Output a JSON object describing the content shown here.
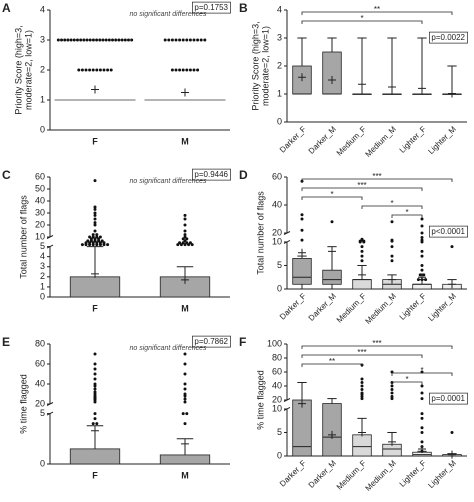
{
  "chart_data": [
    {
      "panel": "A",
      "type": "dot",
      "ylabel": [
        "Priority Score (high=3,",
        "moderate=2, low=1)"
      ],
      "note": "no significant differences",
      "p_value": "p=0.1753",
      "categories": [
        "F",
        "M"
      ],
      "ylim": [
        0,
        4
      ],
      "yticks": [
        0,
        1,
        2,
        3,
        4
      ],
      "median": [
        1,
        1
      ],
      "mean": [
        1.35,
        1.25
      ],
      "dots": [
        [
          3,
          3,
          3,
          3,
          3,
          3,
          3,
          3,
          3,
          3,
          3,
          3,
          3,
          3,
          3,
          3,
          3,
          3,
          3,
          3,
          3,
          3,
          3,
          3,
          2,
          2,
          2,
          2,
          2,
          2,
          2,
          2,
          2,
          2
        ],
        [
          3,
          3,
          3,
          3,
          3,
          3,
          3,
          3,
          3,
          3,
          3,
          3,
          2,
          2,
          2,
          2,
          2,
          2,
          2,
          2
        ]
      ]
    },
    {
      "panel": "B",
      "type": "box",
      "ylabel": [
        "Priority Score (high=3,",
        "moderate=2, low=1)"
      ],
      "p_value": "p=0.0022",
      "categories": [
        "Darker_F",
        "Darker_M",
        "Medium_F",
        "Medium_M",
        "Lighter_F",
        "Lighter_M"
      ],
      "colors": [
        "#a6a6a6",
        "#a6a6a6",
        "#d9d9d9",
        "#d9d9d9",
        "#efefef",
        "#efefef"
      ],
      "ylim": [
        0,
        4
      ],
      "yticks": [
        0,
        1,
        2,
        3,
        4
      ],
      "low": [
        1,
        1,
        1,
        1,
        1,
        1
      ],
      "q1": [
        1,
        1,
        1,
        1,
        1,
        1
      ],
      "median": [
        1,
        1,
        1,
        1,
        1,
        1
      ],
      "q3": [
        2,
        2.5,
        1,
        1,
        1,
        1
      ],
      "high": [
        3,
        3,
        3,
        3,
        3,
        2
      ],
      "mean": [
        1.6,
        1.5,
        1.35,
        1.25,
        1.2,
        1.02
      ],
      "brackets": [
        {
          "from": 0,
          "to": 5,
          "label": "**"
        },
        {
          "from": 0,
          "to": 4,
          "label": "*"
        }
      ]
    },
    {
      "panel": "C",
      "type": "bar",
      "ylabel": [
        "Total number of flags"
      ],
      "note": "no significant differences",
      "p_value": "p=0.9446",
      "categories": [
        "F",
        "M"
      ],
      "colors": [
        "#a6a6a6",
        "#a6a6a6"
      ],
      "ylim": [
        0,
        60
      ],
      "yticks": [
        0,
        1,
        2,
        3,
        4,
        5,
        10,
        20,
        30,
        40,
        50,
        60
      ],
      "values": [
        2,
        2
      ],
      "high": [
        5,
        3
      ],
      "mean": [
        2.3,
        1.7
      ],
      "dots": [
        [
          6,
          6,
          6,
          6,
          6,
          6,
          6,
          6,
          7,
          7,
          7,
          7,
          7,
          7,
          8,
          8,
          8,
          8,
          8,
          9,
          9,
          9,
          10,
          10,
          10,
          10,
          12,
          12,
          15,
          20,
          22,
          25,
          28,
          30,
          33,
          35,
          57
        ],
        [
          6,
          6,
          6,
          6,
          6,
          7,
          7,
          7,
          7,
          8,
          9,
          9,
          10,
          12,
          15,
          20,
          25,
          28
        ]
      ]
    },
    {
      "panel": "D",
      "type": "box",
      "ylabel": [
        "Total number of flags"
      ],
      "p_value": "p<0.0001",
      "categories": [
        "Darker_F",
        "Darker_M",
        "Medium_F",
        "Medium_M",
        "Lighter_F",
        "Lighter_M"
      ],
      "colors": [
        "#a6a6a6",
        "#a6a6a6",
        "#d9d9d9",
        "#d9d9d9",
        "#efefef",
        "#efefef"
      ],
      "ylim": [
        0,
        60
      ],
      "yticks": [
        0,
        5,
        10,
        20,
        40,
        60
      ],
      "low": [
        0,
        0,
        0,
        0,
        0,
        0
      ],
      "q1": [
        1,
        1,
        0,
        0,
        0,
        0
      ],
      "median": [
        2.5,
        2,
        2,
        1,
        1,
        0
      ],
      "q3": [
        6.5,
        4,
        2,
        2,
        1,
        1
      ],
      "high": [
        7,
        9,
        5,
        3,
        2,
        2
      ],
      "mean": [
        7.7,
        8,
        3,
        2,
        2.5,
        1
      ],
      "dots": [
        [
          12,
          22,
          30,
          33,
          57
        ],
        [
          28
        ],
        [
          6,
          7,
          8,
          9,
          10,
          10,
          11,
          11,
          12,
          13
        ],
        [
          6,
          7,
          9,
          11,
          12,
          28
        ],
        [
          2,
          2,
          2,
          3,
          3,
          4,
          5,
          7,
          8,
          10,
          12,
          15,
          20,
          25,
          30
        ],
        [
          9
        ]
      ],
      "brackets": [
        {
          "from": 0,
          "to": 5,
          "label": "***"
        },
        {
          "from": 0,
          "to": 4,
          "label": "***"
        },
        {
          "from": 0,
          "to": 2,
          "label": "*"
        },
        {
          "from": 2,
          "to": 4,
          "label": "*"
        },
        {
          "from": 3,
          "to": 4,
          "label": "*"
        }
      ]
    },
    {
      "panel": "E",
      "type": "bar",
      "ylabel": [
        "% time flagged"
      ],
      "note": "no significant differences",
      "p_value": "p=0.7862",
      "categories": [
        "F",
        "M"
      ],
      "colors": [
        "#a6a6a6",
        "#a6a6a6"
      ],
      "ylim": [
        0,
        80
      ],
      "yticks": [
        0,
        5,
        20,
        40,
        60,
        80
      ],
      "values": [
        1.5,
        0.9
      ],
      "high": [
        3.8,
        2.5
      ],
      "mean": [
        3.3,
        2
      ],
      "dots": [
        [
          4,
          4,
          4.5,
          5,
          22,
          24,
          25,
          26,
          27,
          28,
          30,
          32,
          35,
          38,
          40,
          45,
          50,
          55,
          60,
          70
        ],
        [
          4,
          5,
          5,
          22,
          25,
          28,
          30,
          35,
          40,
          50,
          60,
          70
        ]
      ]
    },
    {
      "panel": "F",
      "type": "box",
      "ylabel": [
        "% time flagged"
      ],
      "p_value": "p=0.0001",
      "categories": [
        "Darker_F",
        "Darker_M",
        "Medium_F",
        "Medium_M",
        "Lighter_F",
        "Lighter_M"
      ],
      "colors": [
        "#a6a6a6",
        "#a6a6a6",
        "#d9d9d9",
        "#d9d9d9",
        "#efefef",
        "#efefef"
      ],
      "ylim": [
        0,
        100
      ],
      "yticks": [
        0,
        5,
        10,
        20,
        40,
        60,
        80,
        100
      ],
      "low": [
        0,
        0,
        0,
        0,
        0,
        0
      ],
      "q1": [
        0,
        0,
        0,
        0,
        0,
        0
      ],
      "median": [
        2,
        4,
        2,
        1.5,
        0.3,
        0
      ],
      "q3": [
        20,
        16,
        4.5,
        2.5,
        0.8,
        0.3
      ],
      "high": [
        45,
        22,
        8,
        5,
        1,
        0.5
      ],
      "mean": [
        16,
        4.5,
        5,
        3,
        1.5,
        0.3
      ],
      "dots": [
        [],
        [],
        [
          22,
          25,
          28,
          30,
          35,
          40,
          45,
          50,
          70
        ],
        [
          22,
          25,
          30,
          35,
          40,
          45,
          60
        ],
        [
          1,
          2,
          3,
          5,
          6,
          8,
          9,
          22,
          30,
          40,
          60
        ],
        [
          5
        ]
      ],
      "brackets": [
        {
          "from": 0,
          "to": 5,
          "label": "***"
        },
        {
          "from": 0,
          "to": 4,
          "label": "***"
        },
        {
          "from": 0,
          "to": 2,
          "label": "**"
        },
        {
          "from": 3,
          "to": 5,
          "label": "*"
        },
        {
          "from": 3,
          "to": 4,
          "label": "*"
        }
      ]
    }
  ]
}
